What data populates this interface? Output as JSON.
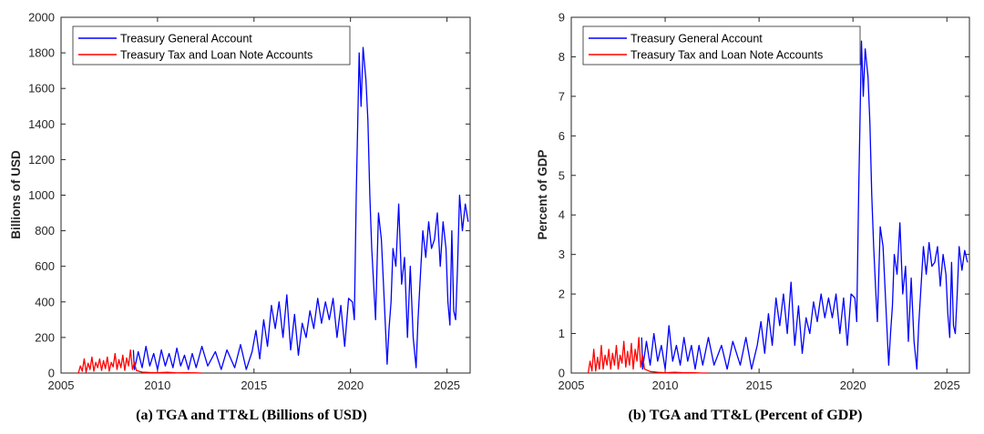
{
  "colors": {
    "tga": "#0000ff",
    "ttl": "#ff0000",
    "axis": "#262626"
  },
  "chart_data": [
    {
      "type": "line",
      "caption": "(a) TGA and TT&L (Billions of USD)",
      "ylabel": "Billions of USD",
      "xlabel": "",
      "xlim": [
        2005,
        2026.2
      ],
      "ylim": [
        0,
        2000
      ],
      "xticks": [
        2005,
        2010,
        2015,
        2020,
        2025
      ],
      "yticks": [
        0,
        200,
        400,
        600,
        800,
        1000,
        1200,
        1400,
        1600,
        1800,
        2000
      ],
      "legend": [
        "Treasury General Account",
        "Treasury Tax and Loan Note Accounts"
      ],
      "legend_position": "top-left",
      "series": [
        {
          "name": "Treasury General Account",
          "color": "#0000ff",
          "x": [
            2008.75,
            2008.8,
            2009.0,
            2009.2,
            2009.4,
            2009.6,
            2009.8,
            2010.0,
            2010.2,
            2010.4,
            2010.6,
            2010.8,
            2011.0,
            2011.2,
            2011.4,
            2011.6,
            2011.8,
            2012.0,
            2012.3,
            2012.6,
            2013.0,
            2013.3,
            2013.6,
            2014.0,
            2014.3,
            2014.6,
            2014.9,
            2015.1,
            2015.3,
            2015.5,
            2015.7,
            2015.9,
            2016.1,
            2016.3,
            2016.5,
            2016.7,
            2016.9,
            2017.1,
            2017.3,
            2017.5,
            2017.7,
            2017.9,
            2018.1,
            2018.3,
            2018.5,
            2018.7,
            2018.9,
            2019.1,
            2019.3,
            2019.5,
            2019.7,
            2019.9,
            2020.1,
            2020.2,
            2020.3,
            2020.45,
            2020.55,
            2020.65,
            2020.8,
            2020.9,
            2021.0,
            2021.1,
            2021.2,
            2021.3,
            2021.45,
            2021.6,
            2021.75,
            2021.9,
            2022.0,
            2022.1,
            2022.2,
            2022.35,
            2022.5,
            2022.65,
            2022.8,
            2022.95,
            2023.1,
            2023.25,
            2023.4,
            2023.5,
            2023.6,
            2023.75,
            2023.9,
            2024.05,
            2024.2,
            2024.35,
            2024.5,
            2024.65,
            2024.8,
            2024.95,
            2025.05,
            2025.15,
            2025.25,
            2025.35,
            2025.45,
            2025.55,
            2025.65,
            2025.8,
            2025.95,
            2026.1
          ],
          "values": [
            130,
            20,
            120,
            30,
            150,
            40,
            110,
            20,
            130,
            40,
            110,
            30,
            140,
            40,
            100,
            20,
            110,
            30,
            150,
            40,
            120,
            20,
            130,
            30,
            160,
            20,
            120,
            240,
            80,
            300,
            150,
            380,
            250,
            400,
            200,
            440,
            130,
            330,
            100,
            280,
            200,
            350,
            250,
            420,
            280,
            400,
            300,
            420,
            200,
            380,
            150,
            420,
            400,
            300,
            1000,
            1800,
            1500,
            1830,
            1650,
            1420,
            1000,
            700,
            500,
            300,
            900,
            750,
            400,
            50,
            250,
            400,
            700,
            600,
            950,
            500,
            650,
            200,
            600,
            200,
            30,
            300,
            500,
            800,
            650,
            850,
            700,
            750,
            900,
            600,
            850,
            700,
            400,
            270,
            800,
            350,
            300,
            600,
            1000,
            800,
            950,
            850
          ]
        },
        {
          "name": "Treasury Tax and Loan Note Accounts",
          "color": "#ff0000",
          "x": [
            2005.9,
            2006.0,
            2006.1,
            2006.2,
            2006.3,
            2006.4,
            2006.5,
            2006.6,
            2006.7,
            2006.8,
            2006.9,
            2007.0,
            2007.1,
            2007.2,
            2007.3,
            2007.4,
            2007.5,
            2007.6,
            2007.7,
            2007.8,
            2007.9,
            2008.0,
            2008.1,
            2008.2,
            2008.3,
            2008.4,
            2008.5,
            2008.6,
            2008.7,
            2008.8,
            2008.9,
            2009.2,
            2009.6,
            2010.0,
            2010.5,
            2011.0,
            2011.5,
            2012.0,
            2012.3
          ],
          "values": [
            0,
            40,
            10,
            80,
            5,
            55,
            20,
            90,
            10,
            60,
            30,
            80,
            15,
            70,
            25,
            90,
            10,
            60,
            35,
            110,
            20,
            75,
            30,
            100,
            15,
            85,
            40,
            130,
            20,
            60,
            15,
            5,
            3,
            2,
            4,
            1,
            2,
            1,
            0
          ]
        }
      ]
    },
    {
      "type": "line",
      "caption": "(b) TGA and TT&L (Percent of GDP)",
      "ylabel": "Percent of GDP",
      "xlabel": "",
      "xlim": [
        2005,
        2026.2
      ],
      "ylim": [
        0,
        9
      ],
      "xticks": [
        2005,
        2010,
        2015,
        2020,
        2025
      ],
      "yticks": [
        0,
        1,
        2,
        3,
        4,
        5,
        6,
        7,
        8,
        9
      ],
      "legend": [
        "Treasury General Account",
        "Treasury Tax and Loan Note Accounts"
      ],
      "legend_position": "top-right",
      "series": [
        {
          "name": "Treasury General Account",
          "color": "#0000ff",
          "x": [
            2008.75,
            2008.8,
            2009.0,
            2009.2,
            2009.4,
            2009.6,
            2009.8,
            2010.0,
            2010.2,
            2010.4,
            2010.6,
            2010.8,
            2011.0,
            2011.2,
            2011.4,
            2011.6,
            2011.8,
            2012.0,
            2012.3,
            2012.6,
            2013.0,
            2013.3,
            2013.6,
            2014.0,
            2014.3,
            2014.6,
            2014.9,
            2015.1,
            2015.3,
            2015.5,
            2015.7,
            2015.9,
            2016.1,
            2016.3,
            2016.5,
            2016.7,
            2016.9,
            2017.1,
            2017.3,
            2017.5,
            2017.7,
            2017.9,
            2018.1,
            2018.3,
            2018.5,
            2018.7,
            2018.9,
            2019.1,
            2019.3,
            2019.5,
            2019.7,
            2019.9,
            2020.1,
            2020.2,
            2020.3,
            2020.45,
            2020.55,
            2020.65,
            2020.8,
            2020.9,
            2021.0,
            2021.1,
            2021.2,
            2021.3,
            2021.45,
            2021.6,
            2021.75,
            2021.9,
            2022.0,
            2022.1,
            2022.2,
            2022.35,
            2022.5,
            2022.65,
            2022.8,
            2022.95,
            2023.1,
            2023.25,
            2023.4,
            2023.5,
            2023.6,
            2023.75,
            2023.9,
            2024.05,
            2024.2,
            2024.35,
            2024.5,
            2024.65,
            2024.8,
            2024.95,
            2025.05,
            2025.15,
            2025.25,
            2025.35,
            2025.45,
            2025.55,
            2025.65,
            2025.8,
            2025.95,
            2026.1
          ],
          "values": [
            0.9,
            0.1,
            0.8,
            0.2,
            1.0,
            0.3,
            0.7,
            0.1,
            1.2,
            0.3,
            0.7,
            0.2,
            0.9,
            0.3,
            0.7,
            0.1,
            0.7,
            0.2,
            0.9,
            0.2,
            0.7,
            0.1,
            0.8,
            0.2,
            0.9,
            0.1,
            0.7,
            1.3,
            0.5,
            1.5,
            0.7,
            1.9,
            1.2,
            2.0,
            1.0,
            2.3,
            0.7,
            1.7,
            0.5,
            1.4,
            1.0,
            1.8,
            1.3,
            2.0,
            1.4,
            1.9,
            1.4,
            2.0,
            1.0,
            1.9,
            0.7,
            2.0,
            1.9,
            1.3,
            4.5,
            8.4,
            7.0,
            8.2,
            7.5,
            6.3,
            4.5,
            3.2,
            2.2,
            1.3,
            3.7,
            3.2,
            1.7,
            0.2,
            1.0,
            1.7,
            3.0,
            2.5,
            3.8,
            2.0,
            2.7,
            0.8,
            2.4,
            0.8,
            0.1,
            1.2,
            2.0,
            3.2,
            2.5,
            3.3,
            2.7,
            2.8,
            3.2,
            2.2,
            3.0,
            2.5,
            1.5,
            0.9,
            2.8,
            1.2,
            1.0,
            2.0,
            3.2,
            2.6,
            3.1,
            2.8
          ]
        },
        {
          "name": "Treasury Tax and Loan Note Accounts",
          "color": "#ff0000",
          "x": [
            2005.9,
            2006.0,
            2006.1,
            2006.2,
            2006.3,
            2006.4,
            2006.5,
            2006.6,
            2006.7,
            2006.8,
            2006.9,
            2007.0,
            2007.1,
            2007.2,
            2007.3,
            2007.4,
            2007.5,
            2007.6,
            2007.7,
            2007.8,
            2007.9,
            2008.0,
            2008.1,
            2008.2,
            2008.3,
            2008.4,
            2008.5,
            2008.6,
            2008.7,
            2008.8,
            2008.9,
            2009.2,
            2009.6,
            2010.0,
            2010.5,
            2011.0,
            2011.5,
            2012.0,
            2012.3
          ],
          "values": [
            0,
            0.3,
            0.05,
            0.6,
            0.05,
            0.4,
            0.1,
            0.7,
            0.1,
            0.45,
            0.2,
            0.6,
            0.1,
            0.5,
            0.2,
            0.7,
            0.1,
            0.45,
            0.25,
            0.8,
            0.15,
            0.55,
            0.2,
            0.75,
            0.1,
            0.6,
            0.3,
            0.9,
            0.15,
            0.45,
            0.1,
            0.04,
            0.02,
            0.01,
            0.02,
            0.01,
            0.01,
            0.0,
            0.0
          ]
        }
      ]
    }
  ]
}
